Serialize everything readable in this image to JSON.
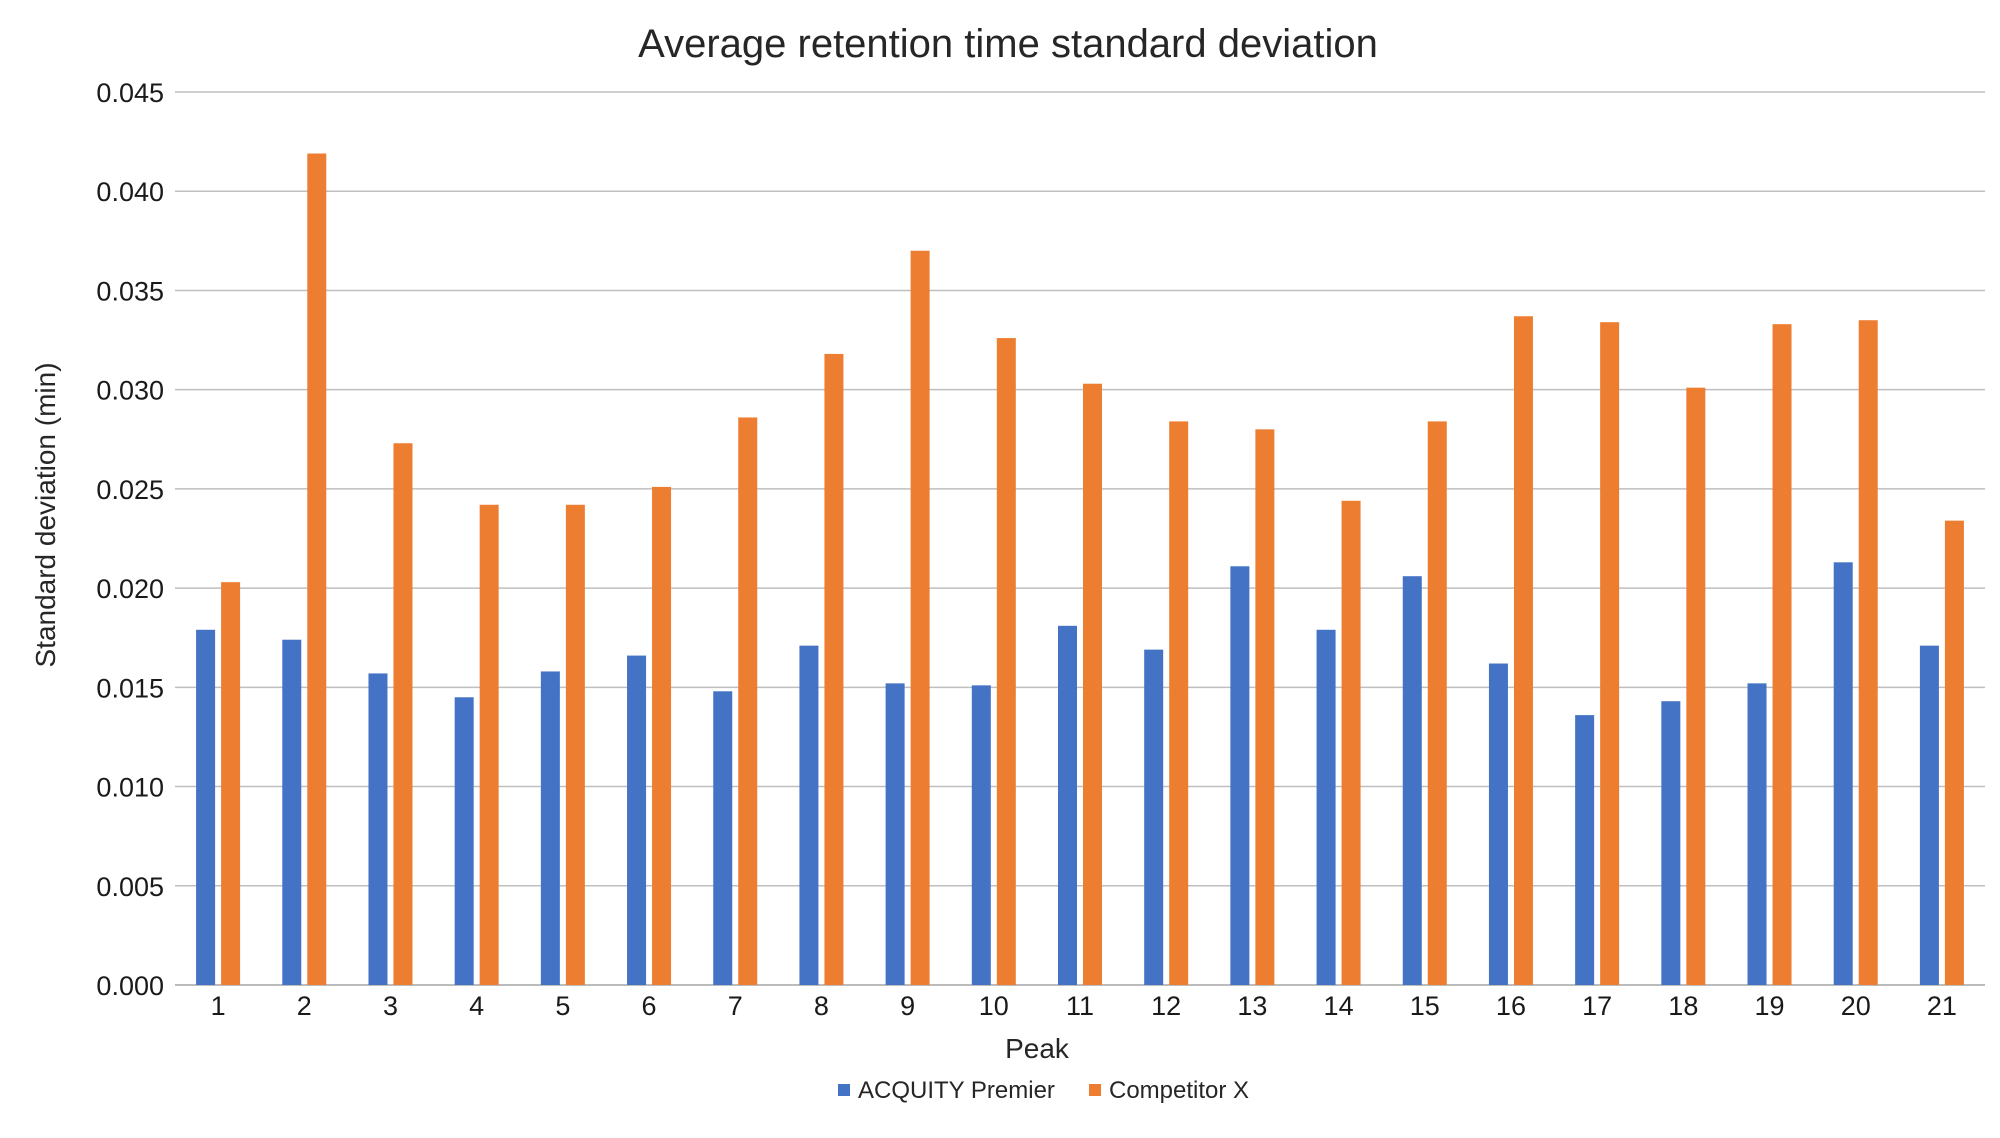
{
  "chart_data": {
    "type": "bar",
    "title": "Average retention time standard deviation",
    "xlabel": "Peak",
    "ylabel": "Standard deviation (min)",
    "ylim": [
      0,
      0.045
    ],
    "yticks": [
      "0.000",
      "0.005",
      "0.010",
      "0.015",
      "0.020",
      "0.025",
      "0.030",
      "0.035",
      "0.040",
      "0.045"
    ],
    "ytick_values": [
      0,
      0.005,
      0.01,
      0.015,
      0.02,
      0.025,
      0.03,
      0.035,
      0.04,
      0.045
    ],
    "categories": [
      "1",
      "2",
      "3",
      "4",
      "5",
      "6",
      "7",
      "8",
      "9",
      "10",
      "11",
      "12",
      "13",
      "14",
      "15",
      "16",
      "17",
      "18",
      "19",
      "20",
      "21"
    ],
    "series": [
      {
        "name": "ACQUITY Premier",
        "color": "#4472c4",
        "values": [
          0.0179,
          0.0174,
          0.0157,
          0.0145,
          0.0158,
          0.0166,
          0.0148,
          0.0171,
          0.0152,
          0.0151,
          0.0181,
          0.0169,
          0.0211,
          0.0179,
          0.0206,
          0.0162,
          0.0136,
          0.0143,
          0.0152,
          0.0213,
          0.0171
        ]
      },
      {
        "name": "Competitor X",
        "color": "#ed7d31",
        "values": [
          0.0203,
          0.0419,
          0.0273,
          0.0242,
          0.0242,
          0.0251,
          0.0286,
          0.0318,
          0.037,
          0.0326,
          0.0303,
          0.0284,
          0.028,
          0.0244,
          0.0284,
          0.0337,
          0.0334,
          0.0301,
          0.0333,
          0.0335,
          0.0234
        ]
      }
    ],
    "legend_position": "bottom",
    "grid": true
  }
}
